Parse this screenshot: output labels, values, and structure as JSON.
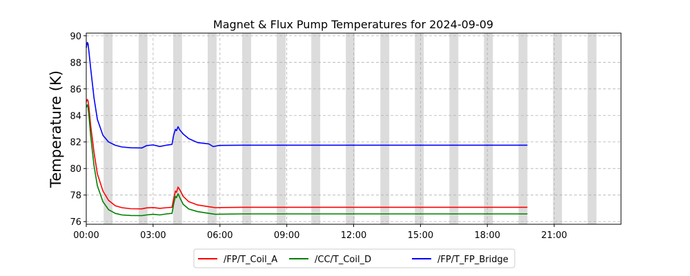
{
  "chart_data": {
    "type": "line",
    "title": "Magnet & Flux Pump Temperatures for 2024-09-09",
    "xlabel": "",
    "ylabel": "Temperature (K)",
    "x_unit": "hours",
    "xlim": [
      0,
      24
    ],
    "ylim": [
      75.8,
      90.2
    ],
    "x_ticks": [
      0,
      3,
      6,
      9,
      12,
      15,
      18,
      21
    ],
    "x_tick_labels": [
      "00:00",
      "03:00",
      "06:00",
      "09:00",
      "12:00",
      "15:00",
      "18:00",
      "21:00"
    ],
    "y_ticks": [
      76,
      78,
      80,
      82,
      84,
      86,
      88,
      90
    ],
    "y_tick_labels": [
      "76",
      "78",
      "80",
      "82",
      "84",
      "86",
      "88",
      "90"
    ],
    "grid": true,
    "legend_position": "bottom-center",
    "shaded_bands": [
      [
        0.78,
        1.18
      ],
      [
        2.35,
        2.75
      ],
      [
        3.9,
        4.3
      ],
      [
        5.45,
        5.85
      ],
      [
        7.0,
        7.4
      ],
      [
        8.55,
        8.95
      ],
      [
        10.1,
        10.5
      ],
      [
        11.65,
        12.05
      ],
      [
        13.2,
        13.6
      ],
      [
        14.75,
        15.15
      ],
      [
        16.3,
        16.7
      ],
      [
        17.85,
        18.25
      ],
      [
        19.4,
        19.8
      ],
      [
        20.95,
        21.35
      ],
      [
        22.5,
        22.9
      ]
    ],
    "series": [
      {
        "name": "/FP/T_Coil_A",
        "color": "#ff0000",
        "x": [
          0,
          0.05,
          0.08,
          0.12,
          0.2,
          0.35,
          0.5,
          0.75,
          1.0,
          1.3,
          1.6,
          2.0,
          2.5,
          2.7,
          3.0,
          3.3,
          3.6,
          3.85,
          3.92,
          4.0,
          4.05,
          4.12,
          4.2,
          4.35,
          4.6,
          5.0,
          5.5,
          5.8,
          6.0,
          7.0,
          10.0,
          15.0,
          19.8
        ],
        "y": [
          85.0,
          85.2,
          85.1,
          84.6,
          83.2,
          81.2,
          79.6,
          78.3,
          77.6,
          77.2,
          77.05,
          76.97,
          76.96,
          77.03,
          77.06,
          77.0,
          77.05,
          77.08,
          77.7,
          78.3,
          78.2,
          78.6,
          78.4,
          77.9,
          77.5,
          77.25,
          77.12,
          77.05,
          77.06,
          77.08,
          77.08,
          77.08,
          77.08
        ]
      },
      {
        "name": "/CC/T_Coil_D",
        "color": "#008000",
        "x": [
          0,
          0.05,
          0.08,
          0.12,
          0.2,
          0.35,
          0.5,
          0.75,
          1.0,
          1.3,
          1.6,
          2.0,
          2.5,
          2.7,
          3.0,
          3.3,
          3.6,
          3.85,
          3.92,
          4.0,
          4.05,
          4.12,
          4.2,
          4.35,
          4.6,
          5.0,
          5.5,
          5.8,
          6.0,
          7.0,
          10.0,
          15.0,
          19.8
        ],
        "y": [
          84.6,
          84.8,
          84.6,
          84.0,
          82.4,
          80.2,
          78.7,
          77.5,
          76.9,
          76.62,
          76.5,
          76.46,
          76.45,
          76.5,
          76.55,
          76.5,
          76.58,
          76.62,
          77.3,
          77.9,
          77.8,
          78.1,
          77.8,
          77.3,
          76.95,
          76.75,
          76.62,
          76.55,
          76.56,
          76.58,
          76.58,
          76.58,
          76.58
        ]
      },
      {
        "name": "/FP/T_FP_Bridge",
        "color": "#0000ff",
        "x": [
          0,
          0.05,
          0.08,
          0.12,
          0.2,
          0.35,
          0.5,
          0.75,
          1.0,
          1.3,
          1.6,
          2.0,
          2.5,
          2.7,
          3.0,
          3.3,
          3.6,
          3.85,
          3.92,
          4.0,
          4.05,
          4.12,
          4.2,
          4.35,
          4.6,
          5.0,
          5.5,
          5.7,
          5.9,
          6.0,
          7.0,
          10.0,
          15.0,
          19.8
        ],
        "y": [
          89.1,
          89.5,
          89.4,
          88.8,
          87.5,
          85.3,
          83.7,
          82.5,
          82.0,
          81.75,
          81.62,
          81.56,
          81.55,
          81.72,
          81.78,
          81.66,
          81.76,
          81.82,
          82.5,
          82.95,
          82.85,
          83.15,
          82.9,
          82.6,
          82.25,
          81.95,
          81.85,
          81.65,
          81.72,
          81.74,
          81.76,
          81.76,
          81.76,
          81.76
        ]
      }
    ]
  }
}
